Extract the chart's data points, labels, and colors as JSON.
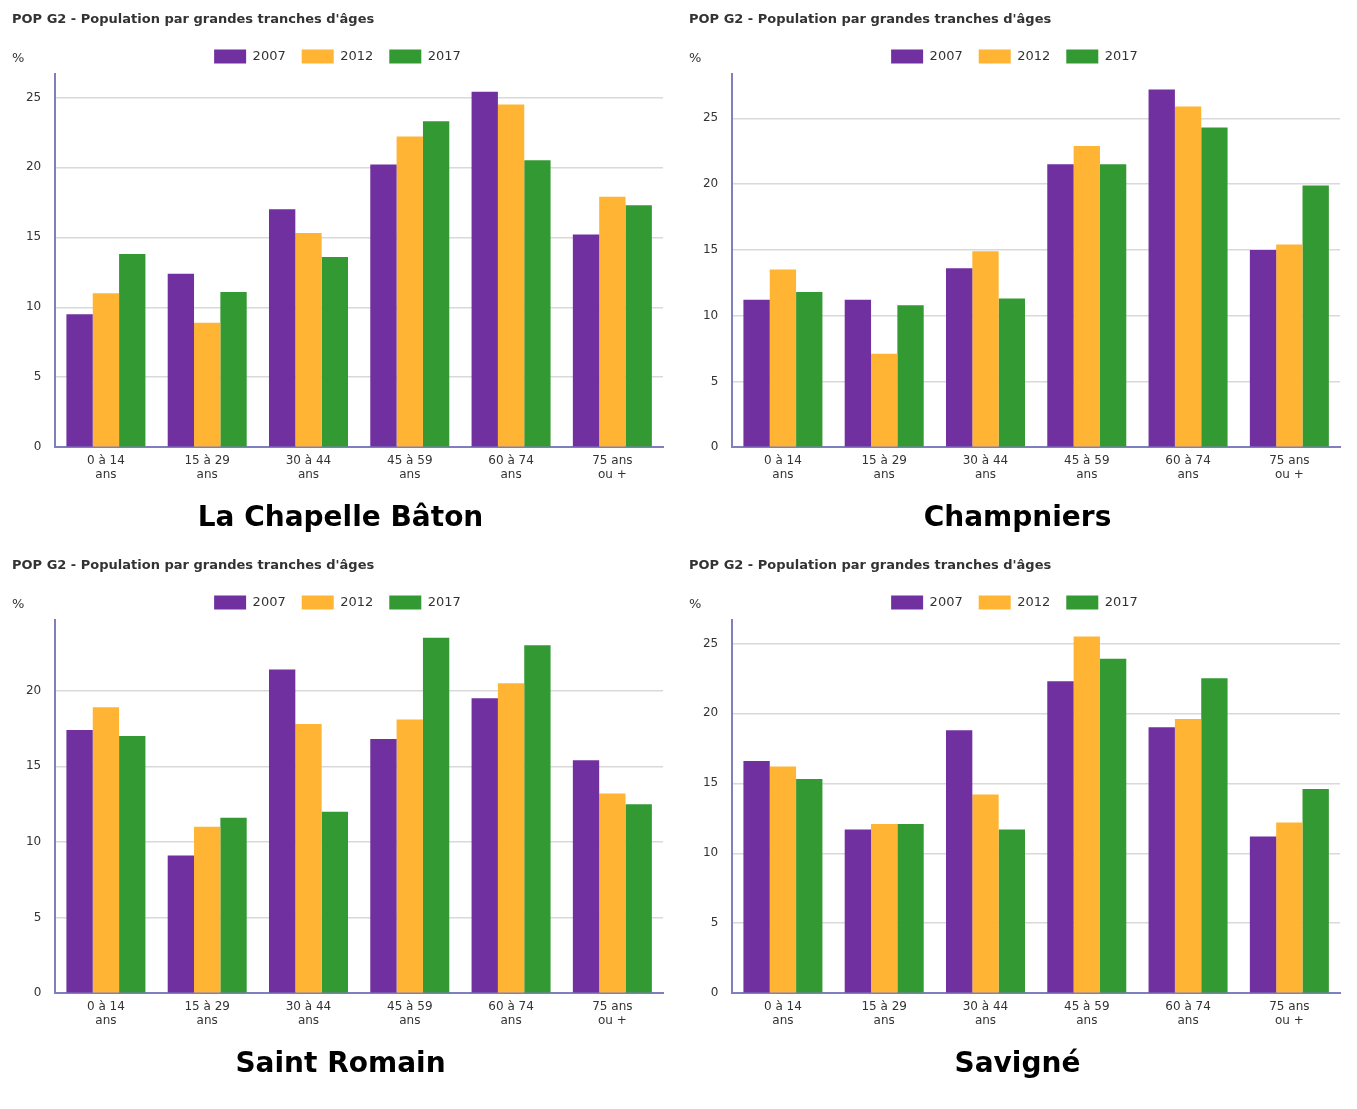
{
  "chart_data": [
    {
      "type": "bar",
      "title": "POP G2 - Population par grandes tranches d'âges",
      "ylabel": "%",
      "categories": [
        "0 à 14 ans",
        "15 à 29 ans",
        "30 à 44 ans",
        "45 à 59 ans",
        "60 à 74 ans",
        "75 ans ou +"
      ],
      "series": [
        {
          "name": "2007",
          "color": "#7030a0",
          "values": [
            9.5,
            12.4,
            17.0,
            20.2,
            25.4,
            15.2
          ]
        },
        {
          "name": "2012",
          "color": "#ffb433",
          "values": [
            11.0,
            8.9,
            15.3,
            22.2,
            24.5,
            17.9
          ]
        },
        {
          "name": "2017",
          "color": "#339933",
          "values": [
            13.8,
            11.1,
            13.6,
            23.3,
            20.5,
            17.3
          ]
        }
      ],
      "ylim": [
        0,
        26.7
      ],
      "yticks": [
        0,
        5,
        10,
        15,
        20,
        25
      ],
      "grid": "y",
      "legend": "top",
      "annotations": [
        "La Chapelle Bâton"
      ]
    },
    {
      "type": "bar",
      "title": "POP G2 - Population par grandes tranches d'âges",
      "ylabel": "%",
      "categories": [
        "0 à 14 ans",
        "15 à 29 ans",
        "30 à 44 ans",
        "45 à 59 ans",
        "60 à 74 ans",
        "75 ans ou +"
      ],
      "series": [
        {
          "name": "2007",
          "color": "#7030a0",
          "values": [
            11.2,
            11.2,
            13.6,
            21.5,
            27.2,
            15.0
          ]
        },
        {
          "name": "2012",
          "color": "#ffb433",
          "values": [
            13.5,
            7.1,
            14.9,
            22.9,
            25.9,
            15.4
          ]
        },
        {
          "name": "2017",
          "color": "#339933",
          "values": [
            11.8,
            10.8,
            11.3,
            21.5,
            24.3,
            19.9
          ]
        }
      ],
      "ylim": [
        0,
        28.4
      ],
      "yticks": [
        0,
        5,
        10,
        15,
        20,
        25
      ],
      "grid": "y",
      "legend": "top",
      "annotations": [
        "Champniers"
      ]
    },
    {
      "type": "bar",
      "title": "POP G2 - Population par grandes tranches d'âges",
      "ylabel": "%",
      "categories": [
        "0 à 14 ans",
        "15 à 29 ans",
        "30 à 44 ans",
        "45 à 59 ans",
        "60 à 74 ans",
        "75 ans ou +"
      ],
      "series": [
        {
          "name": "2007",
          "color": "#7030a0",
          "values": [
            17.4,
            9.1,
            21.4,
            16.8,
            19.5,
            15.4
          ]
        },
        {
          "name": "2012",
          "color": "#ffb433",
          "values": [
            18.9,
            11.0,
            17.8,
            18.1,
            20.5,
            13.2
          ]
        },
        {
          "name": "2017",
          "color": "#339933",
          "values": [
            17.0,
            11.6,
            12.0,
            23.5,
            23.0,
            12.5
          ]
        }
      ],
      "ylim": [
        0,
        24.7
      ],
      "yticks": [
        0,
        5,
        10,
        15,
        20
      ],
      "grid": "y",
      "legend": "top",
      "annotations": [
        "Saint Romain"
      ]
    },
    {
      "type": "bar",
      "title": "POP G2 - Population par grandes tranches d'âges",
      "ylabel": "%",
      "categories": [
        "0 à 14 ans",
        "15 à 29 ans",
        "30 à 44 ans",
        "45 à 59 ans",
        "60 à 74 ans",
        "75 ans ou +"
      ],
      "series": [
        {
          "name": "2007",
          "color": "#7030a0",
          "values": [
            16.6,
            11.7,
            18.8,
            22.3,
            19.0,
            11.2
          ]
        },
        {
          "name": "2012",
          "color": "#ffb433",
          "values": [
            16.2,
            12.1,
            14.2,
            25.5,
            19.6,
            12.2
          ]
        },
        {
          "name": "2017",
          "color": "#339933",
          "values": [
            15.3,
            12.1,
            11.7,
            23.9,
            22.5,
            14.6
          ]
        }
      ],
      "ylim": [
        0,
        26.7
      ],
      "yticks": [
        0,
        5,
        10,
        15,
        20,
        25
      ],
      "grid": "y",
      "legend": "top",
      "annotations": [
        "Savigné"
      ]
    }
  ]
}
